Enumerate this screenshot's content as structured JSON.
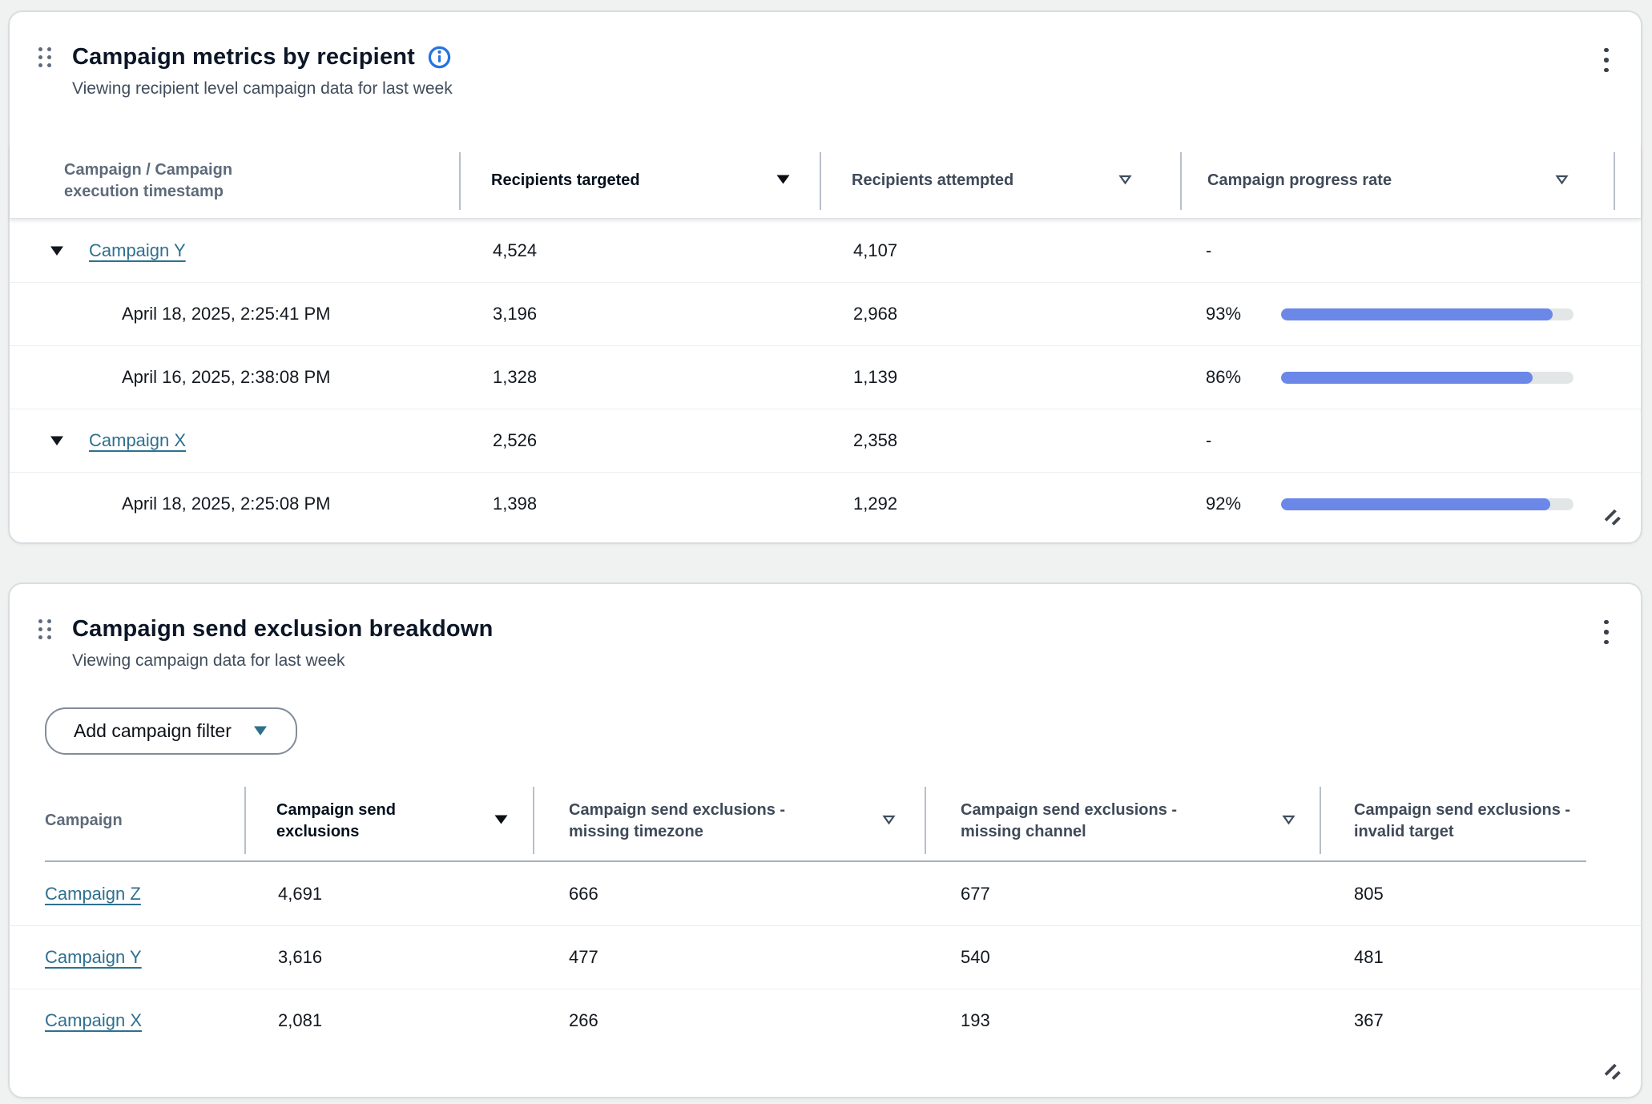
{
  "card1": {
    "title": "Campaign metrics by recipient",
    "subtitle": "Viewing recipient level campaign data for last week",
    "columns": {
      "campaign": {
        "line1": "Campaign / Campaign",
        "line2": "execution timestamp"
      },
      "targeted": "Recipients targeted",
      "attempted": "Recipients attempted",
      "progress": "Campaign progress rate"
    },
    "rows": [
      {
        "name": "Campaign Y",
        "targeted": "4,524",
        "attempted": "4,107",
        "progress_label": "-"
      },
      {
        "timestamp": "April 18, 2025, 2:25:41 PM",
        "targeted": "3,196",
        "attempted": "2,968",
        "progress_label": "93%",
        "progress_pct": 93
      },
      {
        "timestamp": "April 16, 2025, 2:38:08 PM",
        "targeted": "1,328",
        "attempted": "1,139",
        "progress_label": "86%",
        "progress_pct": 86
      },
      {
        "name": "Campaign X",
        "targeted": "2,526",
        "attempted": "2,358",
        "progress_label": "-"
      },
      {
        "timestamp": "April 18, 2025, 2:25:08 PM",
        "targeted": "1,398",
        "attempted": "1,292",
        "progress_label": "92%",
        "progress_pct": 92
      }
    ]
  },
  "card2": {
    "title": "Campaign send exclusion breakdown",
    "subtitle": "Viewing campaign data for last week",
    "filter_button": "Add campaign filter",
    "columns": {
      "campaign": "Campaign",
      "exclusions": {
        "line1": "Campaign send",
        "line2": "exclusions"
      },
      "missing_timezone": {
        "line1": "Campaign send exclusions -",
        "line2": "missing timezone"
      },
      "missing_channel": {
        "line1": "Campaign send exclusions -",
        "line2": "missing channel"
      },
      "invalid_target": {
        "line1": "Campaign send exclusions -",
        "line2": "invalid target"
      }
    },
    "rows": [
      {
        "name": "Campaign Z",
        "exclusions": "4,691",
        "missing_timezone": "666",
        "missing_channel": "677",
        "invalid_target": "805"
      },
      {
        "name": "Campaign Y",
        "exclusions": "3,616",
        "missing_timezone": "477",
        "missing_channel": "540",
        "invalid_target": "481"
      },
      {
        "name": "Campaign X",
        "exclusions": "2,081",
        "missing_timezone": "266",
        "missing_channel": "193",
        "invalid_target": "367"
      }
    ]
  },
  "colors": {
    "progress_fill": "#6b87e8",
    "progress_track": "#e3e6e6",
    "link": "#2e708f",
    "info_icon": "#2573e2"
  }
}
